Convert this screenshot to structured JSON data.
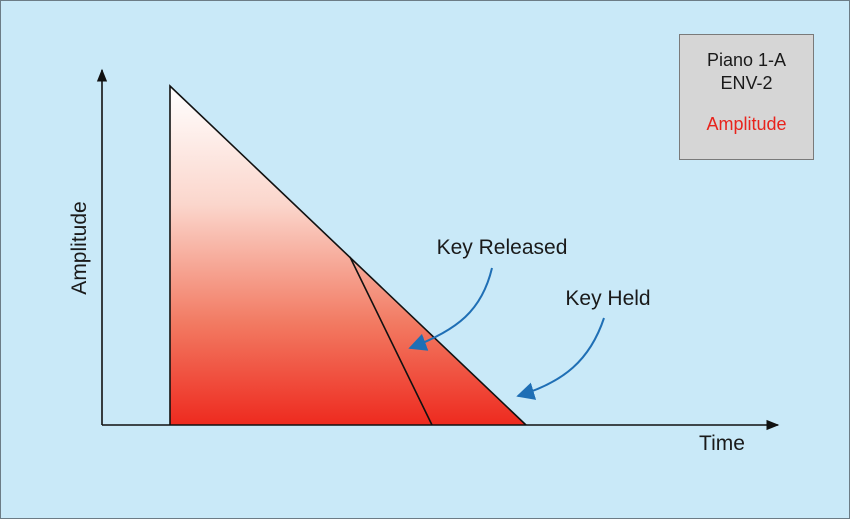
{
  "info_box": {
    "line1": "Piano 1-A",
    "line2": "ENV-2",
    "parameter": "Amplitude",
    "parameter_color": "#e8231c"
  },
  "axes": {
    "y_label": "Amplitude",
    "x_label": "Time"
  },
  "annotations": {
    "key_released": "Key Released",
    "key_held": "Key Held"
  },
  "colors": {
    "background": "#c9e9f8",
    "fill_top": "#ffffff",
    "fill_bottom": "#ee2a1f",
    "arrow": "#1f6fb5",
    "line": "#111111"
  }
}
